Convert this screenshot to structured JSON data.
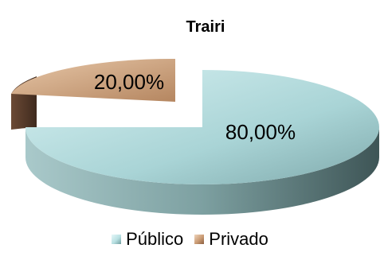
{
  "chart_data": {
    "type": "pie",
    "title": "Trairi",
    "categories": [
      "Público",
      "Privado"
    ],
    "values": [
      80.0,
      20.0
    ],
    "data_labels": [
      "80,00%",
      "20,00%"
    ],
    "legend_position": "bottom",
    "colors": {
      "Público": "#b8e0e2",
      "Privado": "#c99a73"
    }
  }
}
